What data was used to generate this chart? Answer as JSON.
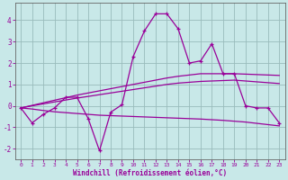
{
  "x": [
    0,
    1,
    2,
    3,
    4,
    5,
    6,
    7,
    8,
    9,
    10,
    11,
    12,
    13,
    14,
    15,
    16,
    17,
    18,
    19,
    20,
    21,
    22,
    23
  ],
  "line1": [
    -0.1,
    -0.8,
    -0.4,
    -0.1,
    0.4,
    0.4,
    -0.6,
    -2.1,
    -0.3,
    0.05,
    2.3,
    3.5,
    4.3,
    4.3,
    3.6,
    2.0,
    2.1,
    2.9,
    1.5,
    1.5,
    0.0,
    -0.1,
    -0.1,
    -0.8
  ],
  "line_reg_top": [
    -0.1,
    0.02,
    0.14,
    0.26,
    0.38,
    0.5,
    0.6,
    0.7,
    0.8,
    0.9,
    1.0,
    1.1,
    1.2,
    1.3,
    1.38,
    1.44,
    1.5,
    1.5,
    1.5,
    1.5,
    1.48,
    1.46,
    1.44,
    1.42
  ],
  "line_reg_mid": [
    -0.1,
    0.0,
    0.09,
    0.18,
    0.27,
    0.36,
    0.44,
    0.52,
    0.6,
    0.68,
    0.76,
    0.84,
    0.92,
    1.0,
    1.06,
    1.1,
    1.14,
    1.16,
    1.18,
    1.2,
    1.16,
    1.12,
    1.08,
    1.04
  ],
  "line_reg_bot": [
    -0.1,
    -0.15,
    -0.22,
    -0.28,
    -0.32,
    -0.36,
    -0.4,
    -0.44,
    -0.46,
    -0.48,
    -0.5,
    -0.52,
    -0.54,
    -0.56,
    -0.58,
    -0.6,
    -0.62,
    -0.65,
    -0.68,
    -0.72,
    -0.76,
    -0.82,
    -0.88,
    -0.94
  ],
  "color": "#990099",
  "bg_color": "#c8e8e8",
  "grid_color": "#99bbbb",
  "xlabel": "Windchill (Refroidissement éolien,°C)",
  "ylim": [
    -2.5,
    4.8
  ],
  "xlim": [
    -0.5,
    23.5
  ],
  "yticks": [
    -2,
    -1,
    0,
    1,
    2,
    3,
    4
  ],
  "xticks": [
    0,
    1,
    2,
    3,
    4,
    5,
    6,
    7,
    8,
    9,
    10,
    11,
    12,
    13,
    14,
    15,
    16,
    17,
    18,
    19,
    20,
    21,
    22,
    23
  ]
}
